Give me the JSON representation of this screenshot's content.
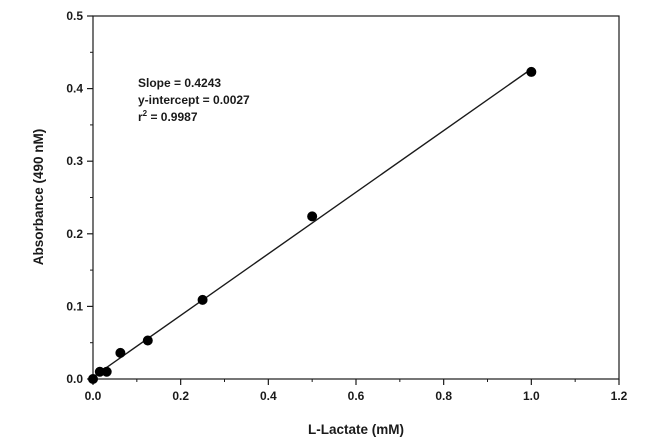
{
  "chart_data": {
    "type": "scatter",
    "xlabel": "L-Lactate (mM)",
    "ylabel": "Absorbance (490 nM)",
    "xlim": [
      0,
      1.2
    ],
    "ylim": [
      0,
      0.5
    ],
    "x_ticks": [
      0.0,
      0.2,
      0.4,
      0.6,
      0.8,
      1.0,
      1.2
    ],
    "y_ticks": [
      0.0,
      0.1,
      0.2,
      0.3,
      0.4,
      0.5
    ],
    "x_tick_labels": [
      "0.0",
      "0.2",
      "0.4",
      "0.6",
      "0.8",
      "1.0",
      "1.2"
    ],
    "y_tick_labels": [
      "0.0",
      "0.1",
      "0.2",
      "0.3",
      "0.4",
      "0.5"
    ],
    "grid": false,
    "series": [
      {
        "points": [
          {
            "x": 0.0,
            "y": 0.0
          },
          {
            "x": 0.0156,
            "y": 0.01
          },
          {
            "x": 0.03125,
            "y": 0.01
          },
          {
            "x": 0.0625,
            "y": 0.036
          },
          {
            "x": 0.125,
            "y": 0.053
          },
          {
            "x": 0.25,
            "y": 0.109
          },
          {
            "x": 0.5,
            "y": 0.224
          },
          {
            "x": 1.0,
            "y": 0.423
          }
        ],
        "color": "#000000"
      }
    ],
    "fit_line": {
      "slope": 0.4243,
      "intercept": 0.0027,
      "x_range": [
        0,
        1.0
      ],
      "color": "#1a1a1a"
    },
    "annotation": {
      "slope": "Slope = 0.4243",
      "intercept": "y-intercept = 0.0027",
      "r2_prefix": "r",
      "r2_sup": "2",
      "r2_value": " = 0.9987"
    }
  }
}
